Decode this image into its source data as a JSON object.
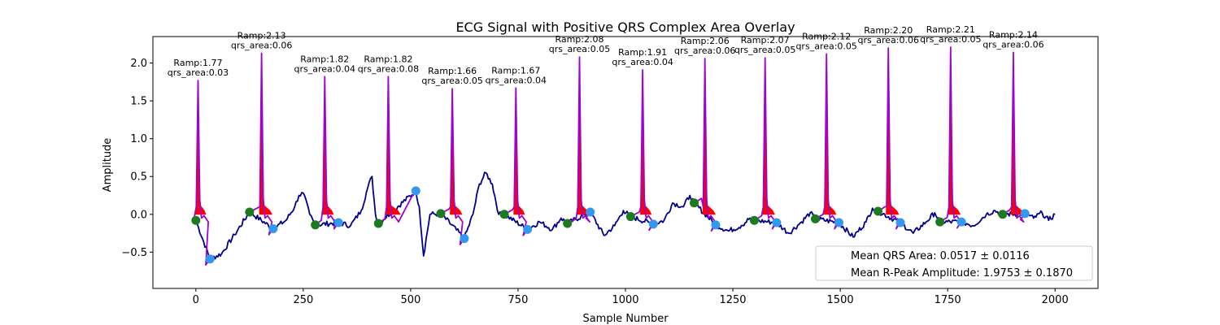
{
  "chart_data": {
    "type": "line",
    "title": "ECG Signal with Positive QRS Complex Area Overlay",
    "xlabel": "Sample Number",
    "ylabel": "Amplitude",
    "xlim": [
      -100,
      2100
    ],
    "ylim": [
      -0.98,
      2.35
    ],
    "x_ticks": [
      0,
      250,
      500,
      750,
      1000,
      1250,
      1500,
      1750,
      2000
    ],
    "y_ticks": [
      -0.5,
      0.0,
      0.5,
      1.0,
      1.5,
      2.0
    ],
    "legend": {
      "placement": "lower-right",
      "entries": [
        "Mean QRS Area: 0.0517 ± 0.0116",
        "Mean R-Peak Amplitude: 1.9753 ± 0.1870"
      ]
    },
    "colors": {
      "signal": "#00008b",
      "qrs_segment": "#9b05d0",
      "qrs_area": "#ff0000",
      "onset_marker": "#1e7a1e",
      "offset_marker": "#3399ee"
    },
    "beats": [
      {
        "r_x": 5,
        "r_amp": 1.77,
        "onset_x": 0,
        "onset_y": -0.08,
        "offset_x": 33,
        "offset_y": -0.59,
        "qrs_area": 0.03,
        "label_ramp": "Ramp:1.77",
        "label_area": "qrs_area:0.03"
      },
      {
        "r_x": 153,
        "r_amp": 2.13,
        "onset_x": 125,
        "onset_y": 0.03,
        "offset_x": 180,
        "offset_y": -0.19,
        "qrs_area": 0.06,
        "label_ramp": "Ramp:2.13",
        "label_area": "qrs_area:0.06"
      },
      {
        "r_x": 300,
        "r_amp": 1.82,
        "onset_x": 278,
        "onset_y": -0.14,
        "offset_x": 332,
        "offset_y": -0.11,
        "qrs_area": 0.04,
        "label_ramp": "Ramp:1.82",
        "label_area": "qrs_area:0.04"
      },
      {
        "r_x": 448,
        "r_amp": 1.82,
        "onset_x": 425,
        "onset_y": -0.12,
        "offset_x": 512,
        "offset_y": 0.31,
        "qrs_area": 0.08,
        "label_ramp": "Ramp:1.82",
        "label_area": "qrs_area:0.08"
      },
      {
        "r_x": 597,
        "r_amp": 1.66,
        "onset_x": 570,
        "onset_y": 0.01,
        "offset_x": 625,
        "offset_y": -0.32,
        "qrs_area": 0.05,
        "label_ramp": "Ramp:1.66",
        "label_area": "qrs_area:0.05"
      },
      {
        "r_x": 745,
        "r_amp": 1.67,
        "onset_x": 718,
        "onset_y": 0.0,
        "offset_x": 772,
        "offset_y": -0.2,
        "qrs_area": 0.04,
        "label_ramp": "Ramp:1.67",
        "label_area": "qrs_area:0.04"
      },
      {
        "r_x": 893,
        "r_amp": 2.08,
        "onset_x": 865,
        "onset_y": -0.12,
        "offset_x": 918,
        "offset_y": 0.03,
        "qrs_area": 0.05,
        "label_ramp": "Ramp:2.08",
        "label_area": "qrs_area:0.05"
      },
      {
        "r_x": 1040,
        "r_amp": 1.91,
        "onset_x": 1012,
        "onset_y": -0.03,
        "offset_x": 1065,
        "offset_y": -0.13,
        "qrs_area": 0.04,
        "label_ramp": "Ramp:1.91",
        "label_area": "qrs_area:0.04"
      },
      {
        "r_x": 1185,
        "r_amp": 2.06,
        "onset_x": 1160,
        "onset_y": 0.15,
        "offset_x": 1210,
        "offset_y": -0.14,
        "qrs_area": 0.06,
        "label_ramp": "Ramp:2.06",
        "label_area": "qrs_area:0.06"
      },
      {
        "r_x": 1325,
        "r_amp": 2.07,
        "onset_x": 1300,
        "onset_y": -0.08,
        "offset_x": 1352,
        "offset_y": -0.11,
        "qrs_area": 0.05,
        "label_ramp": "Ramp:2.07",
        "label_area": "qrs_area:0.05"
      },
      {
        "r_x": 1468,
        "r_amp": 2.12,
        "onset_x": 1442,
        "onset_y": -0.06,
        "offset_x": 1497,
        "offset_y": -0.11,
        "qrs_area": 0.05,
        "label_ramp": "Ramp:2.12",
        "label_area": "qrs_area:0.05"
      },
      {
        "r_x": 1612,
        "r_amp": 2.2,
        "onset_x": 1588,
        "onset_y": 0.04,
        "offset_x": 1640,
        "offset_y": -0.11,
        "qrs_area": 0.06,
        "label_ramp": "Ramp:2.20",
        "label_area": "qrs_area:0.06"
      },
      {
        "r_x": 1757,
        "r_amp": 2.21,
        "onset_x": 1732,
        "onset_y": -0.1,
        "offset_x": 1782,
        "offset_y": -0.1,
        "qrs_area": 0.05,
        "label_ramp": "Ramp:2.21",
        "label_area": "qrs_area:0.05"
      },
      {
        "r_x": 1903,
        "r_amp": 2.14,
        "onset_x": 1878,
        "onset_y": 0.0,
        "offset_x": 1930,
        "offset_y": 0.01,
        "qrs_area": 0.06,
        "label_ramp": "Ramp:2.14",
        "label_area": "qrs_area:0.06"
      }
    ],
    "baseline_points": [
      [
        0,
        -0.08
      ],
      [
        33,
        -0.59
      ],
      [
        60,
        -0.52
      ],
      [
        90,
        -0.27
      ],
      [
        125,
        0.03
      ],
      [
        180,
        -0.19
      ],
      [
        210,
        -0.08
      ],
      [
        230,
        0.1
      ],
      [
        240,
        0.25
      ],
      [
        250,
        0.28
      ],
      [
        265,
        0.0
      ],
      [
        278,
        -0.14
      ],
      [
        332,
        -0.11
      ],
      [
        360,
        -0.15
      ],
      [
        385,
        0.05
      ],
      [
        400,
        0.35
      ],
      [
        410,
        0.5
      ],
      [
        418,
        0.0
      ],
      [
        425,
        -0.12
      ],
      [
        512,
        0.31
      ],
      [
        520,
        0.1
      ],
      [
        530,
        -0.55
      ],
      [
        545,
        0.0
      ],
      [
        570,
        0.01
      ],
      [
        625,
        -0.32
      ],
      [
        645,
        0.0
      ],
      [
        660,
        0.4
      ],
      [
        675,
        0.55
      ],
      [
        690,
        0.4
      ],
      [
        705,
        0.0
      ],
      [
        718,
        0.0
      ],
      [
        772,
        -0.2
      ],
      [
        800,
        -0.1
      ],
      [
        830,
        -0.2
      ],
      [
        850,
        -0.05
      ],
      [
        865,
        -0.12
      ],
      [
        918,
        0.03
      ],
      [
        950,
        -0.28
      ],
      [
        975,
        -0.15
      ],
      [
        995,
        0.05
      ],
      [
        1012,
        -0.03
      ],
      [
        1065,
        -0.13
      ],
      [
        1090,
        -0.08
      ],
      [
        1110,
        0.15
      ],
      [
        1135,
        0.1
      ],
      [
        1150,
        0.25
      ],
      [
        1160,
        0.15
      ],
      [
        1210,
        -0.14
      ],
      [
        1240,
        -0.22
      ],
      [
        1270,
        -0.15
      ],
      [
        1290,
        -0.05
      ],
      [
        1300,
        -0.08
      ],
      [
        1352,
        -0.11
      ],
      [
        1380,
        -0.25
      ],
      [
        1410,
        -0.1
      ],
      [
        1430,
        0.02
      ],
      [
        1442,
        -0.06
      ],
      [
        1497,
        -0.11
      ],
      [
        1530,
        -0.3
      ],
      [
        1560,
        -0.1
      ],
      [
        1575,
        0.08
      ],
      [
        1588,
        0.04
      ],
      [
        1640,
        -0.11
      ],
      [
        1670,
        -0.25
      ],
      [
        1700,
        -0.1
      ],
      [
        1720,
        0.02
      ],
      [
        1732,
        -0.1
      ],
      [
        1782,
        -0.1
      ],
      [
        1810,
        -0.15
      ],
      [
        1840,
        0.0
      ],
      [
        1860,
        0.05
      ],
      [
        1878,
        0.0
      ],
      [
        1930,
        0.01
      ],
      [
        1950,
        -0.05
      ],
      [
        1970,
        0.02
      ],
      [
        1985,
        -0.08
      ],
      [
        2000,
        0.0
      ]
    ]
  }
}
